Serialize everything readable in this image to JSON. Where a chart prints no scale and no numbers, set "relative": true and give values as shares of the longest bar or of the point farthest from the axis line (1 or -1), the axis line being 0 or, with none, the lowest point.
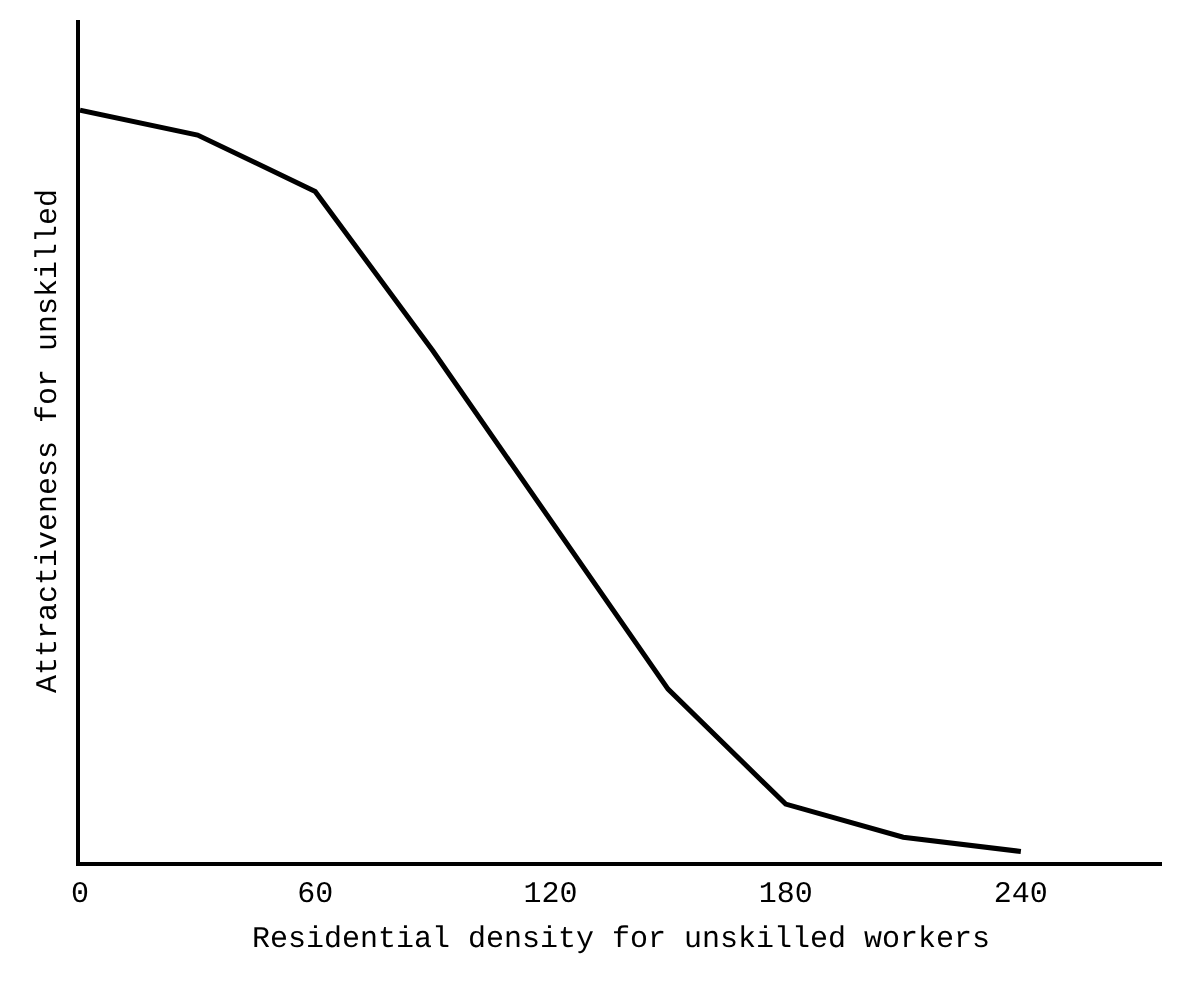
{
  "chart_data": {
    "type": "line",
    "relative": true,
    "xlabel": "Residential density for unskilled workers",
    "ylabel": "Attractiveness for unskilled",
    "x": [
      0,
      30,
      60,
      90,
      150,
      180,
      210,
      240
    ],
    "series": [
      {
        "color": "#000000",
        "values": [
          1.0,
          0.967,
          0.892,
          0.68,
          0.23,
          0.077,
          0.033,
          0.014
        ]
      }
    ],
    "xlim": [
      0,
      276
    ],
    "xticks": [
      0,
      60,
      120,
      180,
      240
    ],
    "marker": "none",
    "line_style": "solid"
  }
}
